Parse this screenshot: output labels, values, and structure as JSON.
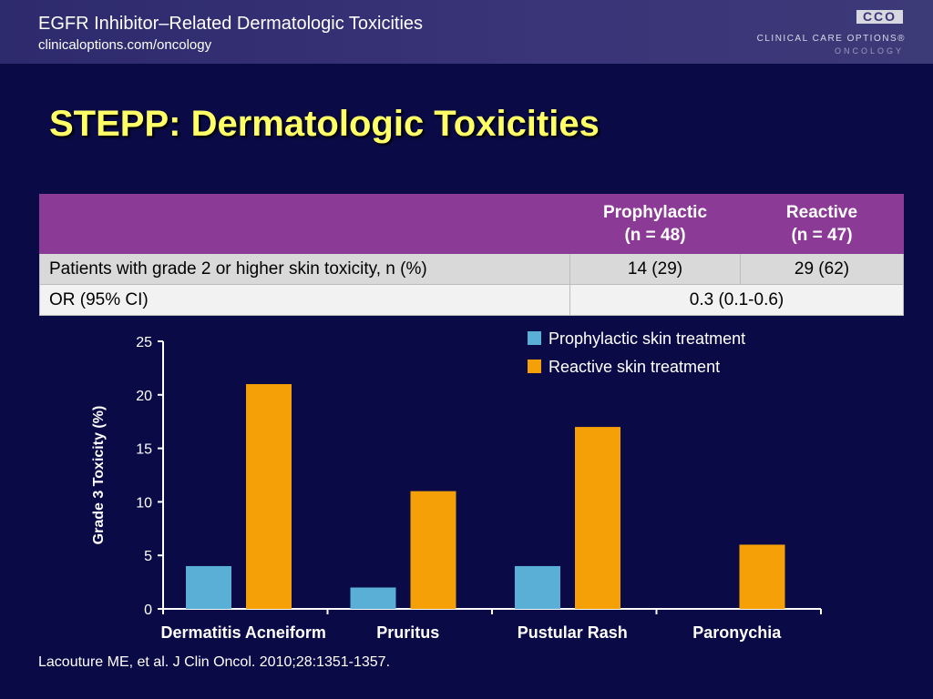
{
  "header": {
    "title": "EGFR Inhibitor–Related Dermatologic Toxicities",
    "url": "clinicaloptions.com/oncology",
    "logo_mark": "CCO",
    "logo_line1": "CLINICAL CARE OPTIONS®",
    "logo_line2": "ONCOLOGY"
  },
  "slide_title": "STEPP: Dermatologic Toxicities",
  "table": {
    "col1_line1": "Prophylactic",
    "col1_line2": "(n = 48)",
    "col2_line1": "Reactive",
    "col2_line2": "(n = 47)",
    "row1_label": "Patients with grade 2 or higher skin toxicity, n (%)",
    "row1_val1": "14 (29)",
    "row1_val2": "29 (62)",
    "row2_label": "OR (95% CI)",
    "row2_val": "0.3 (0.1-0.6)"
  },
  "chart_data": {
    "type": "bar",
    "ylabel": "Grade 3 Toxicity (%)",
    "xlabel": "",
    "categories": [
      "Dermatitis Acneiform",
      "Pruritus",
      "Pustular Rash",
      "Paronychia"
    ],
    "series": [
      {
        "name": "Prophylactic skin treatment",
        "color": "#5aafd6",
        "values": [
          4,
          2,
          4,
          0
        ]
      },
      {
        "name": "Reactive skin treatment",
        "color": "#f5a006",
        "values": [
          21,
          11,
          17,
          6
        ]
      }
    ],
    "ylim": [
      0,
      25
    ],
    "yticks": [
      0,
      5,
      10,
      15,
      20,
      25
    ],
    "grid": false,
    "legend": "top-right"
  },
  "footer": "Lacouture ME, et al. J Clin Oncol. 2010;28:1351-1357."
}
